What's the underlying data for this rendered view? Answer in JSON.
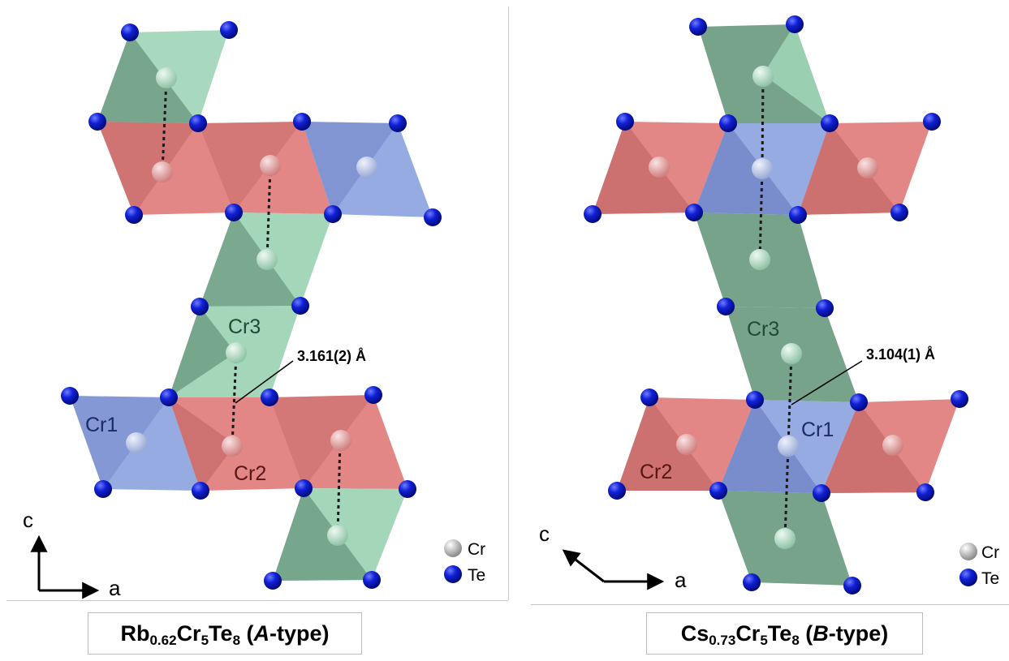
{
  "left_panel": {
    "labels": {
      "cr1": "Cr1",
      "cr2": "Cr2",
      "cr3": "Cr3"
    },
    "distance": "3.161(2) Å",
    "axes": {
      "c": "c",
      "a": "a"
    },
    "legend": {
      "cr": "Cr",
      "te": "Te"
    },
    "caption": {
      "formula_el1": "Rb",
      "formula_sub1": "0.62",
      "formula_el2": "Cr",
      "formula_sub2": "5",
      "formula_el3": "Te",
      "formula_sub3": "8",
      "type_open": " (",
      "type_italic": "A",
      "type_rest": "-type)"
    }
  },
  "right_panel": {
    "labels": {
      "cr1": "Cr1",
      "cr2": "Cr2",
      "cr3": "Cr3"
    },
    "distance": "3.104(1) Å",
    "axes": {
      "c": "c",
      "a": "a"
    },
    "legend": {
      "cr": "Cr",
      "te": "Te"
    },
    "caption": {
      "formula_el1": "Cs",
      "formula_sub1": "0.73",
      "formula_el2": "Cr",
      "formula_sub2": "5",
      "formula_el3": "Te",
      "formula_sub3": "8",
      "type_open": " (",
      "type_italic": "B",
      "type_rest": "-type)"
    }
  },
  "colors": {
    "green_light": "#9fd4b6",
    "green_dark": "#6f9e84",
    "red_light": "#e08080",
    "red_dark": "#c46868",
    "blue_light": "#8fa6e0",
    "blue_dark": "#6d80c4",
    "te_atom": "#0a18c8",
    "cr_green": "#b8e3cc",
    "cr_red": "#e7a0a0",
    "cr_blue": "#c4d0ee"
  }
}
